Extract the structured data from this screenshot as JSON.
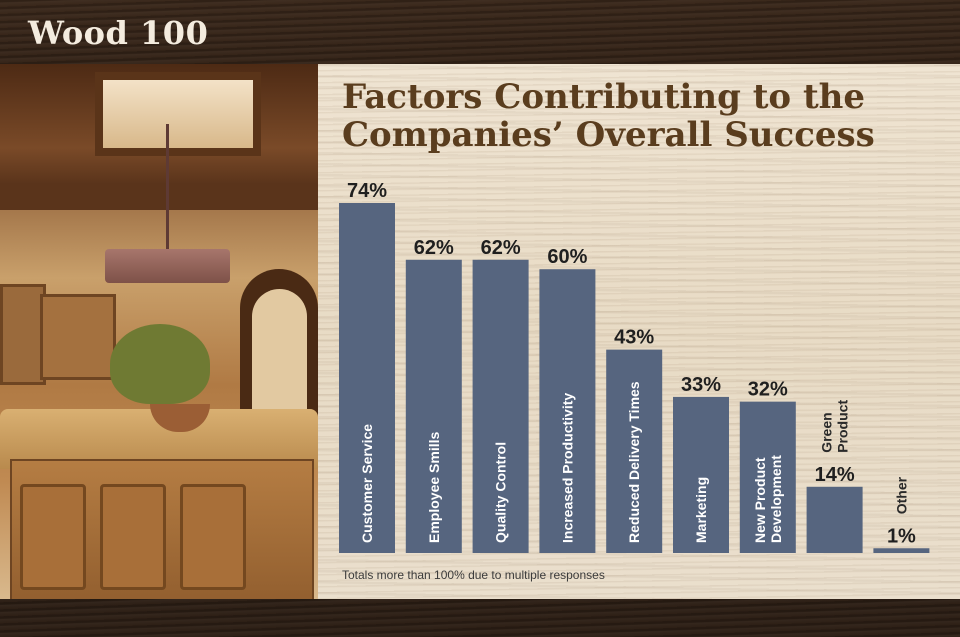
{
  "brand": "Wood 100",
  "footnote": "Totals more than 100% due to multiple responses",
  "chart_data": {
    "type": "bar",
    "title": "Factors Contributing to the Companies’ Overall Success",
    "title_lines": [
      "Factors Contributing to the",
      "Companies’ Overall Success"
    ],
    "categories": [
      "Customer Service",
      "Employee Smills",
      "Quality Control",
      "Increased Productivity",
      "Reduced Delivery Times",
      "Marketing",
      "New Product Development",
      "Green Product",
      "Other"
    ],
    "category_lines": [
      [
        "Customer Service"
      ],
      [
        "Employee Smills"
      ],
      [
        "Quality Control"
      ],
      [
        "Increased Productivity"
      ],
      [
        "Reduced Delivery Times"
      ],
      [
        "Marketing"
      ],
      [
        "New Product",
        "Development"
      ],
      [
        "Green",
        "Product"
      ],
      [
        "Other"
      ]
    ],
    "values": [
      74,
      62,
      62,
      60,
      43,
      33,
      32,
      14,
      1
    ],
    "value_labels": [
      "74%",
      "62%",
      "62%",
      "60%",
      "43%",
      "33%",
      "32%",
      "14%",
      "1%"
    ],
    "unit": "%",
    "ylim": [
      0,
      74
    ],
    "bar_color": "#56657f",
    "grid": false,
    "legend": "none"
  }
}
